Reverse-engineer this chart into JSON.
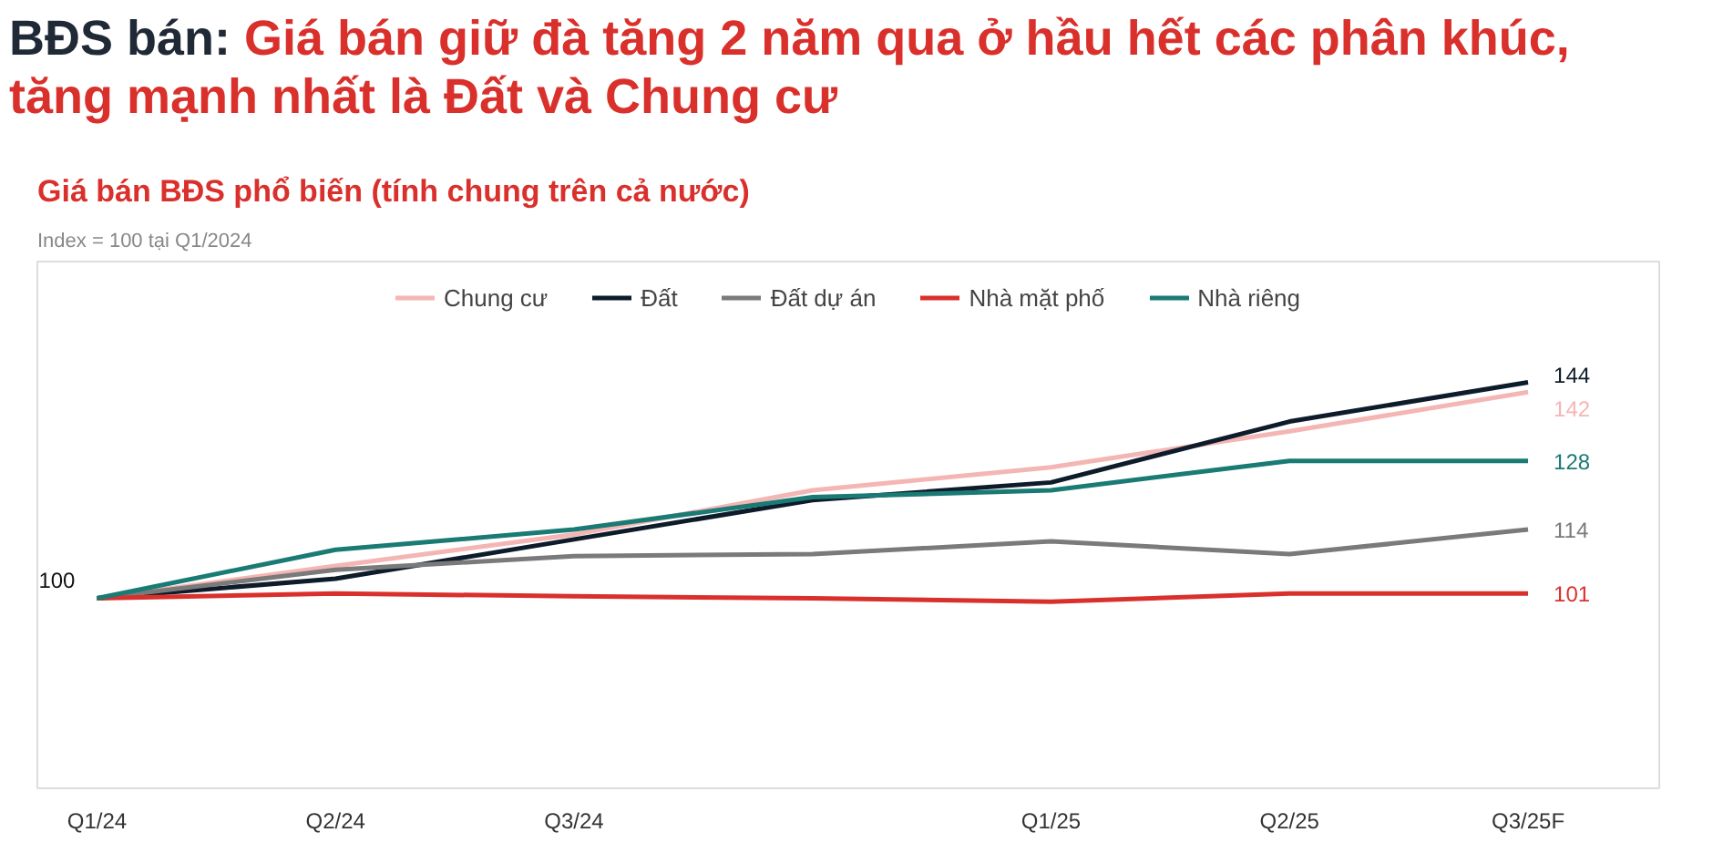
{
  "chart_data": {
    "type": "line",
    "title": "BĐS bán: Giá bán giữ đà tăng 2 năm qua ở hầu hết các phân khúc, tăng mạnh nhất là Đất và Chung cư",
    "subtitle": "Giá bán BĐS phổ biến (tính chung trên cả nước)",
    "annotations": [
      "Index = 100 tại Q1/2024"
    ],
    "categories": [
      "Q1/24",
      "Q2/24",
      "Q3/24",
      null,
      "Q1/25",
      "Q2/25",
      "Q3/25F"
    ],
    "series": [
      {
        "name": "Chung cư",
        "color": "#f4b6b4",
        "values": [
          100,
          106.6,
          113,
          122,
          126.7,
          134,
          142
        ],
        "value_labels": [
          null,
          null,
          null,
          null,
          null,
          null,
          "142"
        ]
      },
      {
        "name": "Đất",
        "color": "#0d1b2a",
        "values": [
          100,
          104,
          112,
          120,
          123.6,
          136,
          144
        ],
        "value_labels": [
          "100",
          null,
          null,
          null,
          null,
          null,
          "144"
        ]
      },
      {
        "name": "Đất dự án",
        "color": "#7a7a7a",
        "values": [
          100,
          105.8,
          108.6,
          109,
          111.6,
          109,
          114
        ],
        "value_labels": [
          null,
          null,
          null,
          null,
          null,
          null,
          "114"
        ]
      },
      {
        "name": "Nhà mặt phố",
        "color": "#d9302c",
        "values": [
          100,
          101,
          100.4,
          100,
          99.3,
          101,
          101
        ],
        "value_labels": [
          null,
          null,
          null,
          null,
          null,
          null,
          "101"
        ]
      },
      {
        "name": "Nhà riêng",
        "color": "#1a7a74",
        "values": [
          100,
          109.9,
          114,
          120.6,
          122,
          128,
          128
        ],
        "value_labels": [
          null,
          null,
          null,
          null,
          null,
          null,
          "128"
        ]
      }
    ],
    "legend": "top",
    "grid": false,
    "marker": "none",
    "line_style": "solid"
  }
}
